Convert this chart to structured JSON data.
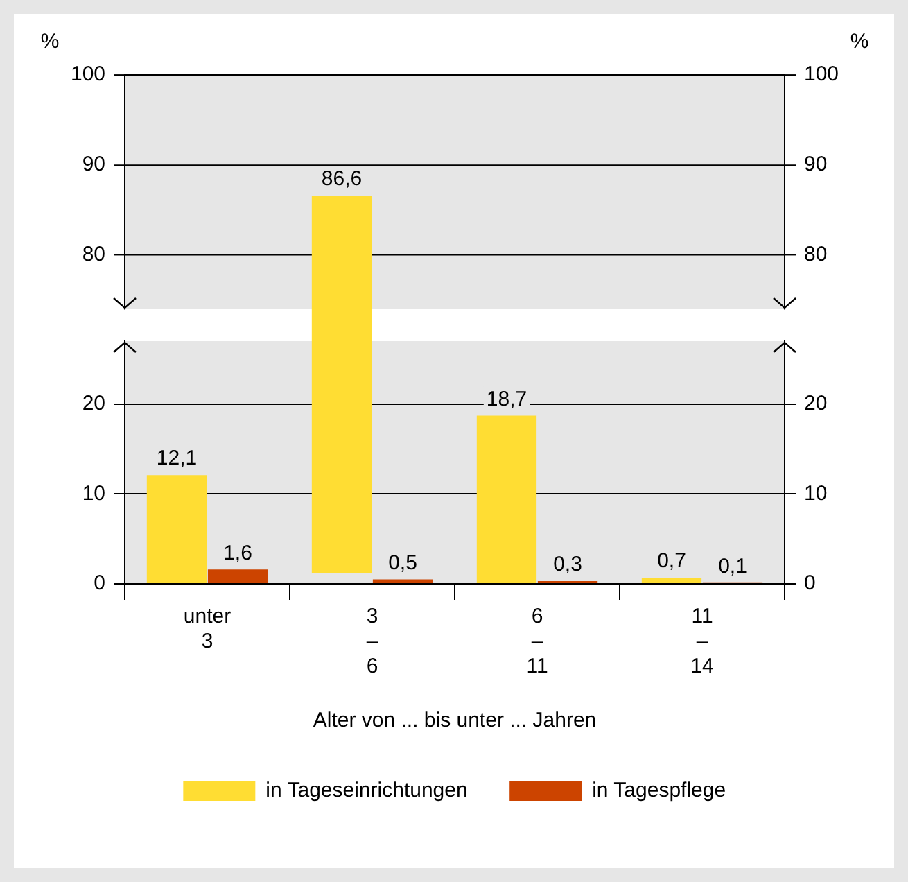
{
  "chart_data": [
    {
      "type": "bar",
      "categories": [
        null,
        null,
        null,
        null
      ],
      "series": [
        {
          "color": "#ffdd33",
          "values": [
            null,
            86.6,
            null,
            null
          ],
          "value_labels": [
            null,
            "86,6",
            null,
            null
          ]
        },
        {
          "color": "#cc4400",
          "values": [
            null,
            null,
            null,
            null
          ]
        }
      ],
      "ylabel": "%",
      "y2label": "%",
      "ylim": [
        74,
        100
      ],
      "yticks": [
        80,
        90,
        100
      ],
      "y2lim": [
        74,
        100
      ],
      "y2ticks": [
        80,
        90,
        100
      ],
      "grid": "y",
      "tick_labels": "y"
    },
    {
      "type": "bar",
      "categories": [
        "unter 3",
        "3 – 6",
        "6 – 11",
        "11 – 14"
      ],
      "series": [
        {
          "name": "in Tageseinrichtungen",
          "color": "#ffdd33",
          "values": [
            12.1,
            null,
            18.7,
            0.7
          ],
          "value_labels": [
            "12,1",
            null,
            "18,7",
            "0,7"
          ]
        },
        {
          "name": "in Tagespflege",
          "color": "#cc4400",
          "values": [
            1.6,
            0.5,
            0.3,
            0.1
          ],
          "value_labels": [
            "1,6",
            "0,5",
            "0,3",
            "0,1"
          ]
        }
      ],
      "xlabel": "Alter von ... bis unter ... Jahren",
      "ylim": [
        0,
        27
      ],
      "yticks": [
        0,
        10,
        20
      ],
      "y2lim": [
        0,
        27
      ],
      "y2ticks": [
        0,
        10,
        20
      ],
      "grid": "y",
      "legend": "bottom"
    }
  ]
}
